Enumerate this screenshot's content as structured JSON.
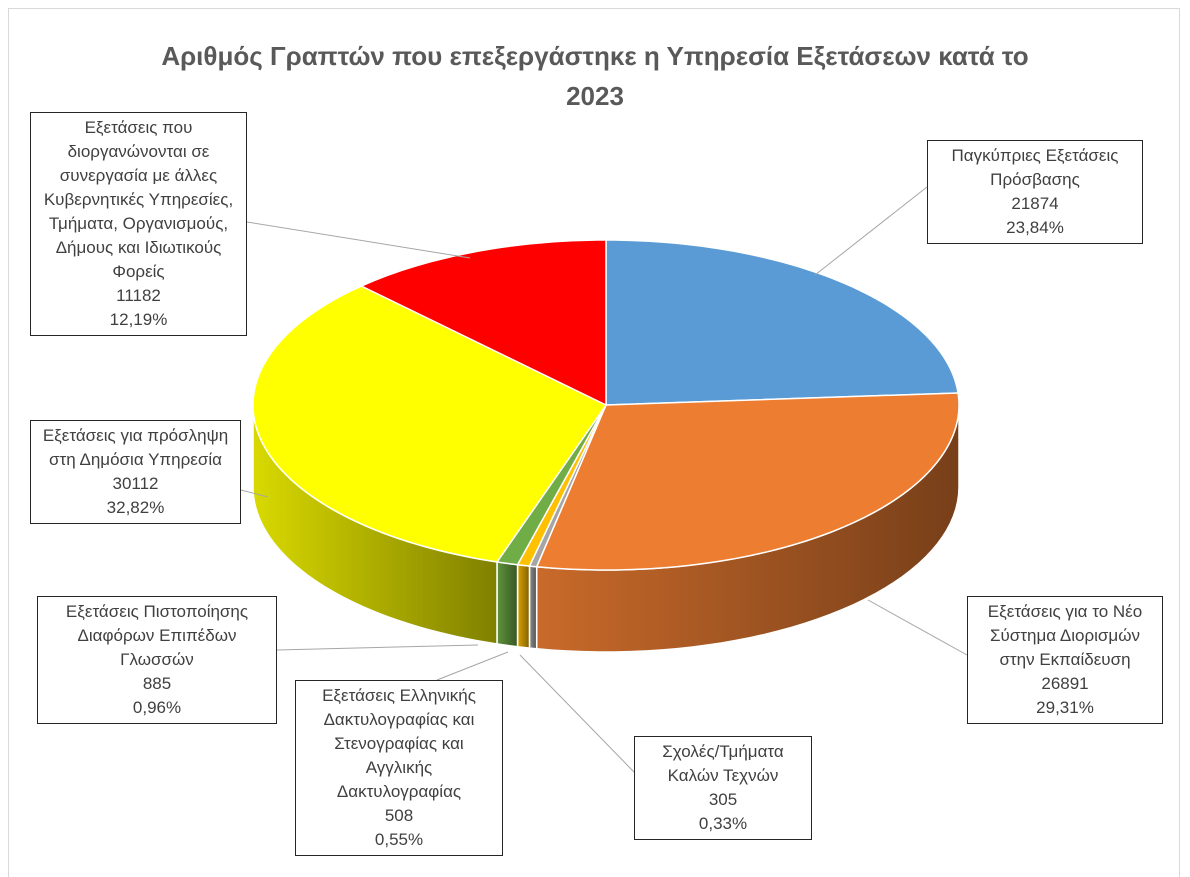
{
  "chart_data": {
    "type": "pie3d",
    "title": "Αριθμός Γραπτών που επεξεργάστηκε η Υπηρεσία Εξετάσεων κατά το 2023",
    "categories": [
      "Παγκύπριες Εξετάσεις Πρόσβασης",
      "Εξετάσεις για το Νέο Σύστημα Διορισμών στην Εκπαίδευση",
      "Σχολές/Τμήματα Καλών Τεχνών",
      "Εξετάσεις Ελληνικής Δακτυλογραφίας και Στενογραφίας και Αγγλικής Δακτυλογραφίας",
      "Εξετάσεις Πιστοποίησης Διαφόρων Επιπέδων Γλωσσών",
      "Εξετάσεις για πρόσληψη στη Δημόσια Υπηρεσία",
      "Εξετάσεις που διοργανώνονται σε συνεργασία με άλλες Κυβερνητικές Υπηρεσίες, Τμήματα, Οργανισμούς, Δήμους και Ιδιωτικούς Φορείς"
    ],
    "values": [
      21874,
      26891,
      305,
      508,
      885,
      30112,
      11182
    ],
    "percent_labels": [
      "23,84%",
      "29,31%",
      "0,33%",
      "0,55%",
      "0,96%",
      "32,82%",
      "12,19%"
    ],
    "colors": [
      "#5b9bd5",
      "#ed7d31",
      "#a5a5a5",
      "#ffc000",
      "#70ad47",
      "#ffff00",
      "#ff0000"
    ]
  }
}
